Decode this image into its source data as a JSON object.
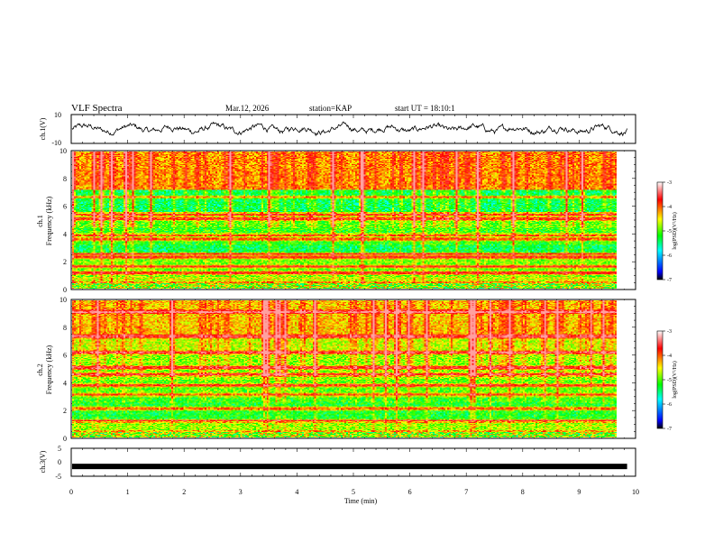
{
  "header": {
    "title": "VLF Spectra",
    "date": "Mar.12, 2026",
    "station": "station=KAP",
    "start": "start UT = 18:10:1"
  },
  "colors": {
    "jet": [
      "#000080",
      "#0000ff",
      "#00ffff",
      "#00ff00",
      "#ffff00",
      "#ff0000",
      "#ff8c8c",
      "#ffffff"
    ],
    "trace": "#000000",
    "frame": "#000000"
  },
  "chart_data": [
    {
      "type": "line",
      "name": "ch1-waveform",
      "ylabel": "ch.1(V)",
      "ylim": [
        -10,
        10
      ],
      "y_ticks": [
        "10",
        "-10"
      ],
      "xlim": [
        0,
        10
      ],
      "data_extent_min": 9.85,
      "amplitude_range_v": [
        -5,
        5
      ]
    },
    {
      "type": "heatmap",
      "name": "ch1-spectrogram",
      "ylabel": "ch.1 Frequency (kHz)",
      "ylim": [
        0,
        10
      ],
      "y_ticks": [
        "0",
        "2",
        "4",
        "6",
        "8",
        "10"
      ],
      "xlim": [
        0,
        10
      ],
      "data_extent_min": 9.85,
      "colorbar": {
        "label": "log(PSD)(V²/Hz)",
        "ticks": [
          "-3",
          "-4",
          "-5",
          "-6",
          "-7"
        ],
        "range": [
          -7,
          -3
        ]
      },
      "hot_bands_khz": [
        0.3,
        1.1,
        1.6,
        2.3,
        2.5,
        3.6,
        3.9,
        5.1,
        5.4,
        6.7
      ]
    },
    {
      "type": "heatmap",
      "name": "ch2-spectrogram",
      "ylabel": "ch.2 Frequency (kHz)",
      "ylim": [
        0,
        10
      ],
      "y_ticks": [
        "0",
        "2",
        "4",
        "6",
        "8",
        "10"
      ],
      "xlim": [
        0,
        10
      ],
      "data_extent_min": 9.85,
      "colorbar": {
        "label": "log(PSD)(V²/Hz)",
        "ticks": [
          "-3",
          "-4",
          "-5",
          "-6",
          "-7"
        ],
        "range": [
          -7,
          -3
        ]
      },
      "hot_bands_khz": [
        0.3,
        1.2,
        2.1,
        3.1,
        3.8,
        4.6,
        5.1,
        6.2,
        7.4,
        9.2
      ]
    },
    {
      "type": "line",
      "name": "ch3-waveform",
      "ylabel": "ch.3(V)",
      "ylim": [
        -5,
        5
      ],
      "y_ticks": [
        "5",
        "0",
        "-5"
      ],
      "xlim": [
        0,
        10
      ],
      "data_extent_min": 9.85,
      "level_v": -1.5
    }
  ],
  "xaxis": {
    "label": "Time (min)",
    "ticks": [
      "0",
      "1",
      "2",
      "3",
      "4",
      "5",
      "6",
      "7",
      "8",
      "9",
      "10"
    ]
  }
}
